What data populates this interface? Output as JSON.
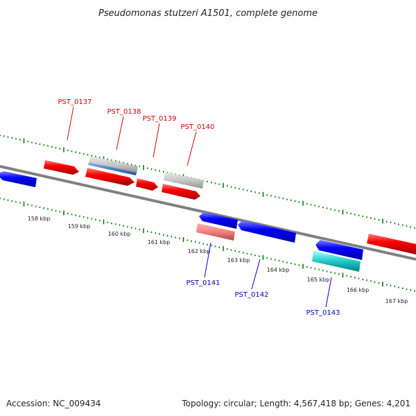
{
  "title": "Pseudomonas stutzeri A1501, complete genome",
  "footer": {
    "accession": "Accession: NC_009434",
    "topology": "Topology: circular; Length: 4,567,418 bp; Genes: 4,201"
  },
  "ticks": [
    "158 kbp",
    "159 kbp",
    "160 kbp",
    "161 kbp",
    "162 kbp",
    "163 kbp",
    "164 kbp",
    "165 kbp",
    "166 kbp",
    "167 kbp"
  ],
  "labels_top": [
    "PST_0137",
    "PST_0138",
    "PST_0139",
    "PST_0140"
  ],
  "labels_bottom": [
    "PST_0141",
    "PST_0142",
    "PST_0143"
  ],
  "colors": {
    "forward_gene": "#e00000",
    "reverse_gene": "#0000e0",
    "pseudo_forward": "#c8c8c8",
    "pseudo_reverse": "#f08080",
    "rna_gene": "#20c8c8",
    "highlight_gene": "#4a7fc0",
    "backbone": "#808080",
    "tick": "#008000"
  }
}
